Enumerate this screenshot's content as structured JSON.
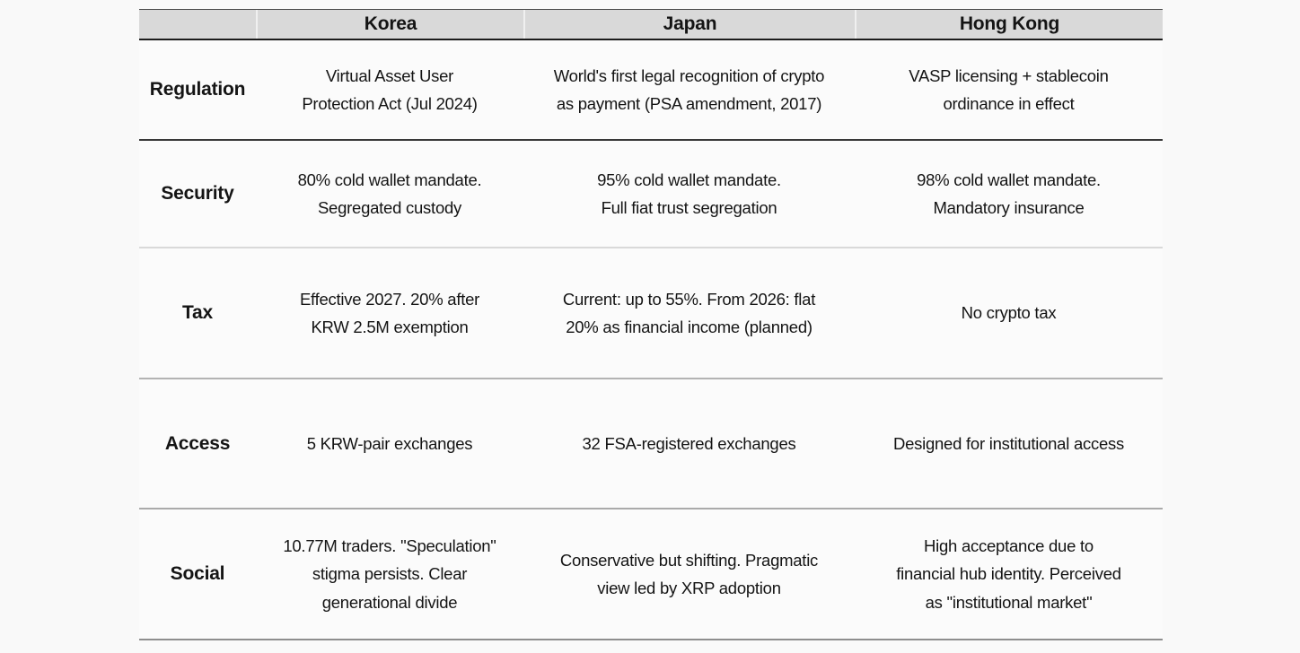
{
  "table": {
    "columns": [
      "",
      "Korea",
      "Japan",
      "Hong Kong"
    ],
    "rows": [
      {
        "label": "Regulation",
        "cells": [
          "Virtual Asset User Protection Act (Jul 2024)",
          "World's first legal recognition of crypto as payment (PSA amendment, 2017)",
          "VASP licensing + stablecoin ordinance in effect"
        ]
      },
      {
        "label": "Security",
        "cells": [
          "80% cold wallet mandate. Segregated custody",
          "95% cold wallet mandate. Full fiat trust segregation",
          "98% cold wallet mandate. Mandatory insurance"
        ]
      },
      {
        "label": "Tax",
        "cells": [
          "Effective 2027. 20% after KRW 2.5M exemption",
          "Current: up to 55%. From 2026: flat 20% as financial income (planned)",
          "No crypto tax"
        ]
      },
      {
        "label": "Access",
        "cells": [
          "5 KRW-pair exchanges",
          "32 FSA-registered exchanges",
          "Designed for institutional access"
        ]
      },
      {
        "label": "Social",
        "cells": [
          "10.77M traders. \"Speculation\" stigma persists. Clear generational divide",
          "Conservative but shifting. Pragmatic view led by XRP adoption",
          "High acceptance due to financial hub identity. Perceived as \"institutional market\""
        ]
      }
    ]
  },
  "colors": {
    "header_bg": "#d9d9d9",
    "text": "#141414",
    "page_bg": "#f9f9f9",
    "border_dark": "#1c1c1c",
    "border_mid": "#aaaaaa",
    "border_light": "#d9d9d9"
  }
}
